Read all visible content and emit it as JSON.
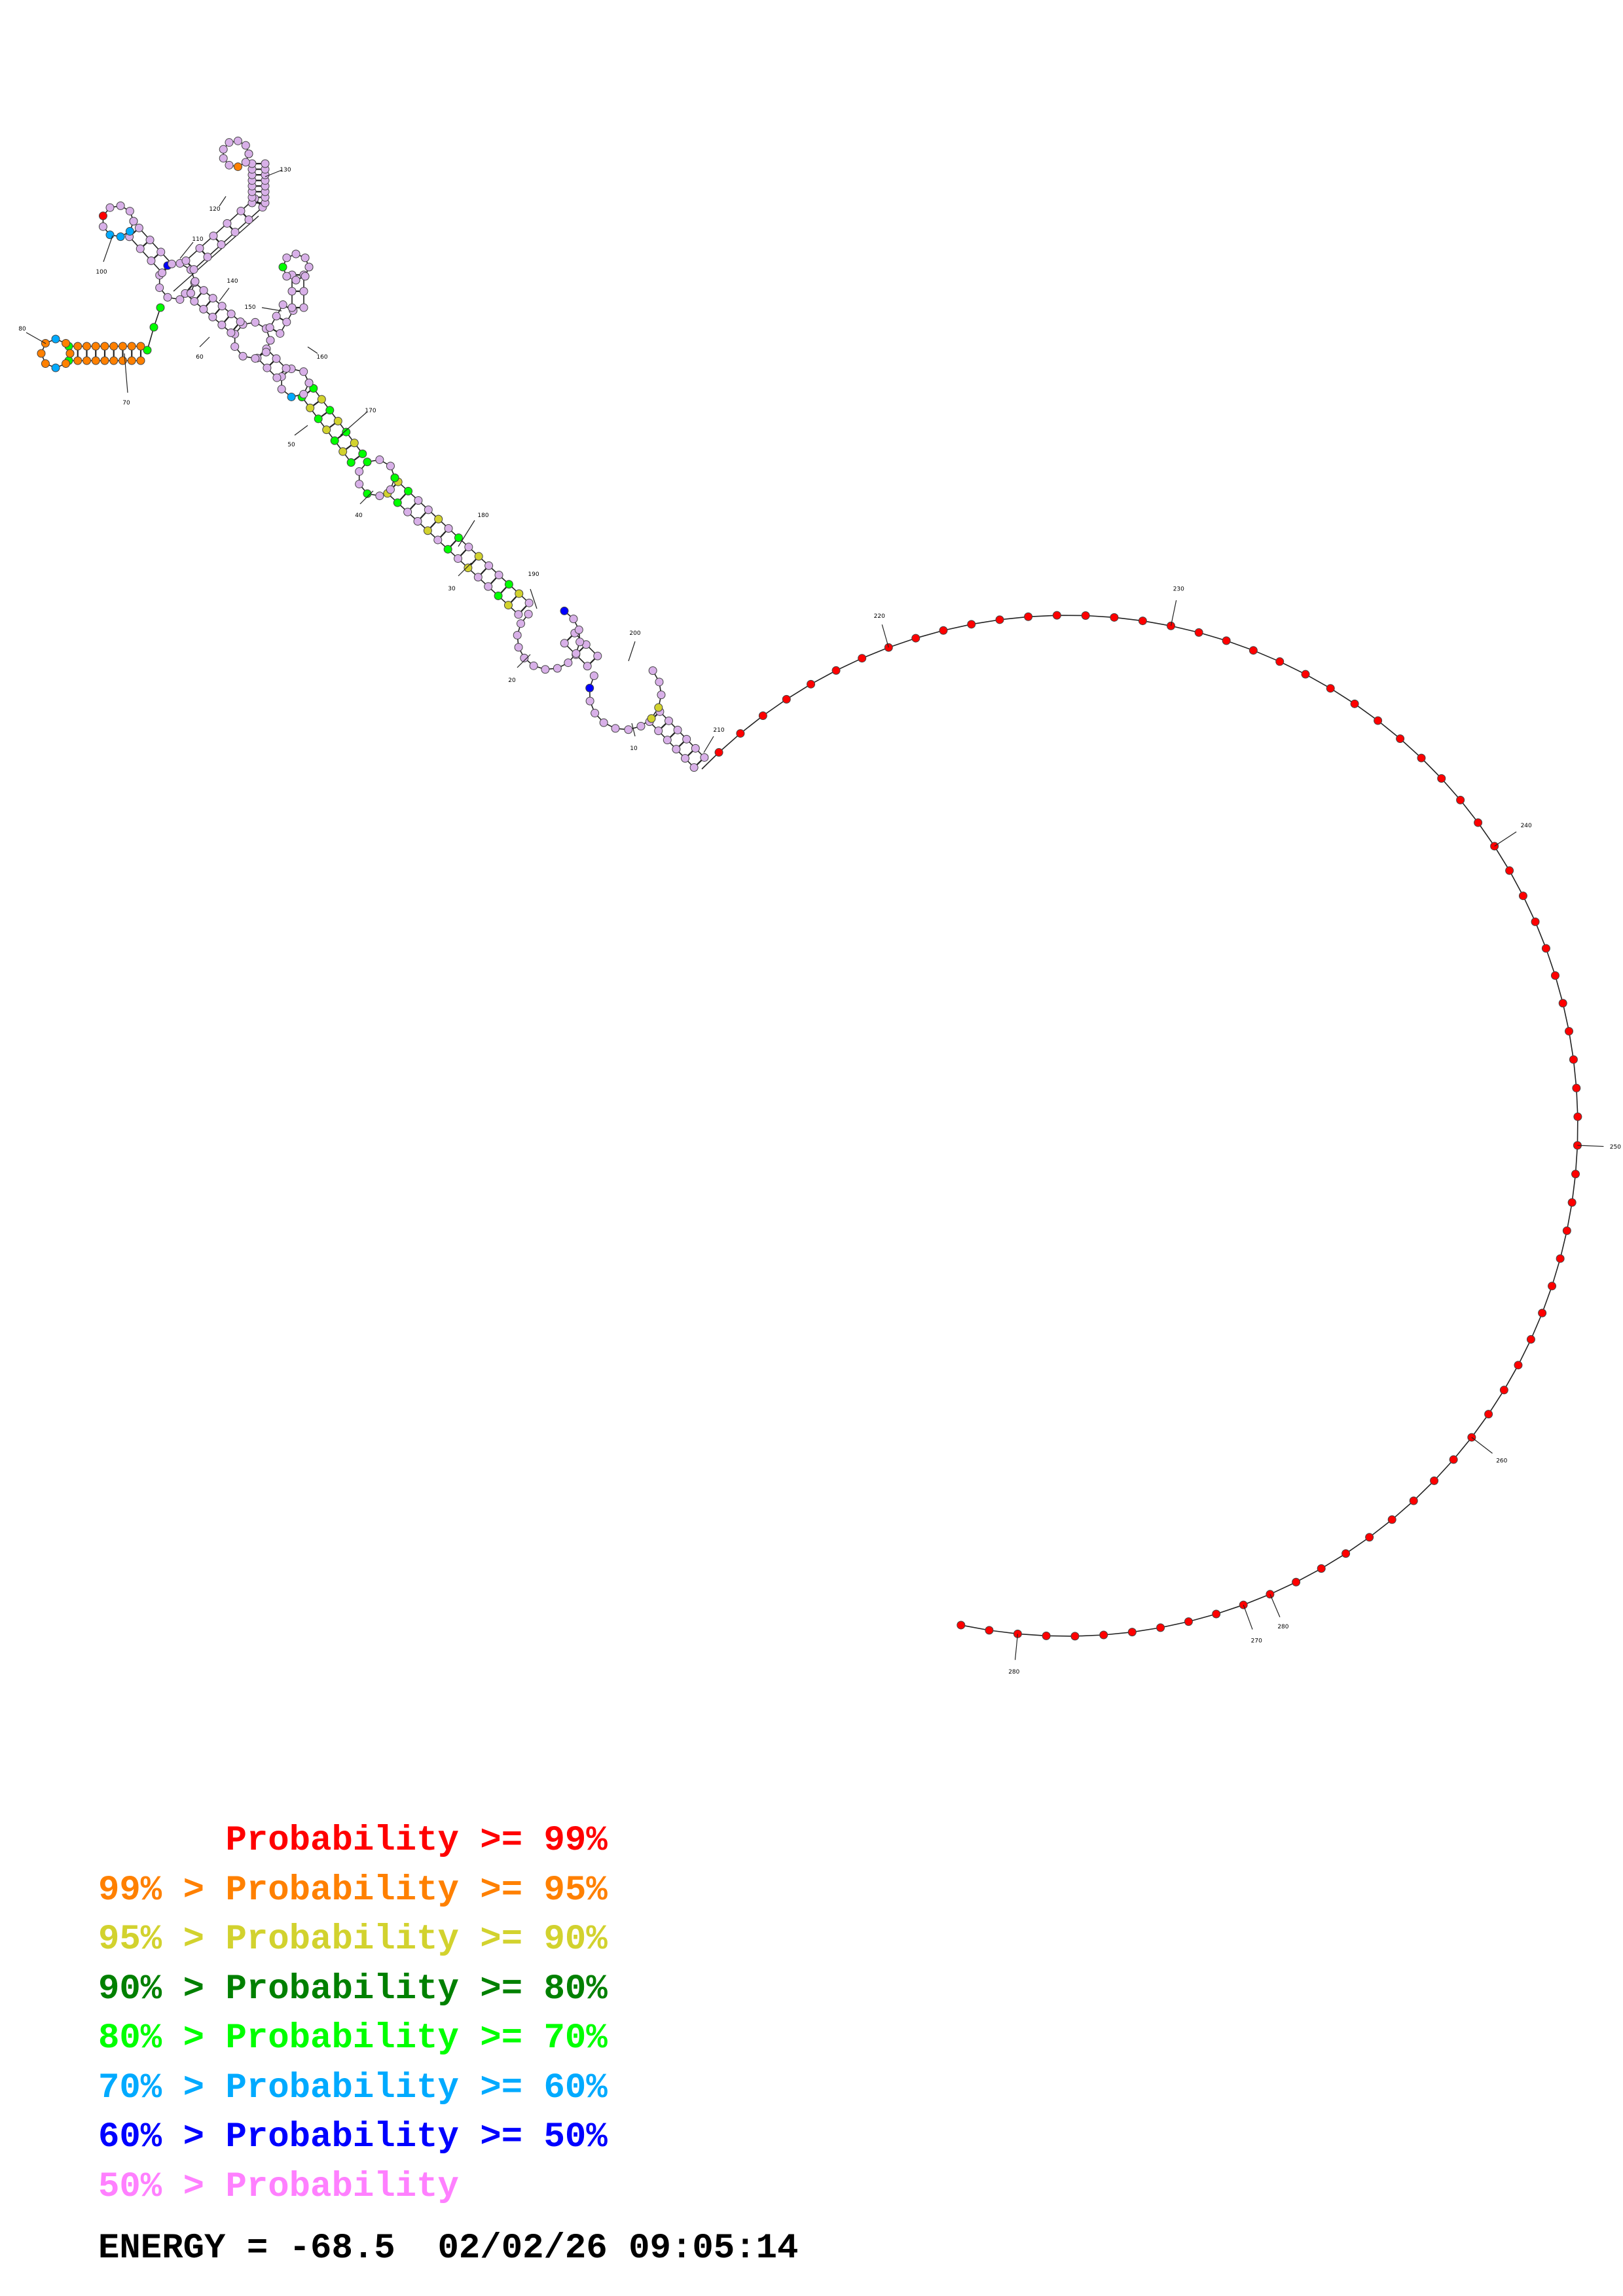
{
  "diagram": {
    "position_labels": [
      "10",
      "20",
      "30",
      "40",
      "50",
      "60",
      "70",
      "80",
      "100",
      "110",
      "120",
      "130",
      "140",
      "150",
      "160",
      "170",
      "180",
      "190",
      "200",
      "210",
      "220",
      "230",
      "240",
      "250",
      "260",
      "270",
      "280"
    ]
  },
  "legend": {
    "rows": [
      {
        "prefix": "",
        "label": "Probability >= 99%",
        "color": "#ff0000"
      },
      {
        "prefix": "99% > ",
        "label": "Probability >= 95%",
        "color": "#ff8000"
      },
      {
        "prefix": "95% > ",
        "label": "Probability >= 90%",
        "color": "#d2d22e"
      },
      {
        "prefix": "90% > ",
        "label": "Probability >= 80%",
        "color": "#008000"
      },
      {
        "prefix": "80% > ",
        "label": "Probability >= 70%",
        "color": "#00ff00"
      },
      {
        "prefix": "70% > ",
        "label": "Probability >= 60%",
        "color": "#00aaff"
      },
      {
        "prefix": "60% > ",
        "label": "Probability >= 50%",
        "color": "#0000ff"
      },
      {
        "prefix": "50% > ",
        "label": "Probability",
        "color": "#ff80ff"
      }
    ]
  },
  "footer": {
    "energy_label": "ENERGY = ",
    "energy_value": "-68.5",
    "datetime": "02/02/26 09:05:14"
  },
  "colors": {
    "red": "#ff0000",
    "orange": "#ff8000",
    "yellow": "#d2d22e",
    "dark_green": "#008000",
    "green": "#00ff00",
    "light_blue": "#00aaff",
    "blue": "#0000ff",
    "pink": "#ff80ff",
    "lavender": "#d8b0e8"
  }
}
